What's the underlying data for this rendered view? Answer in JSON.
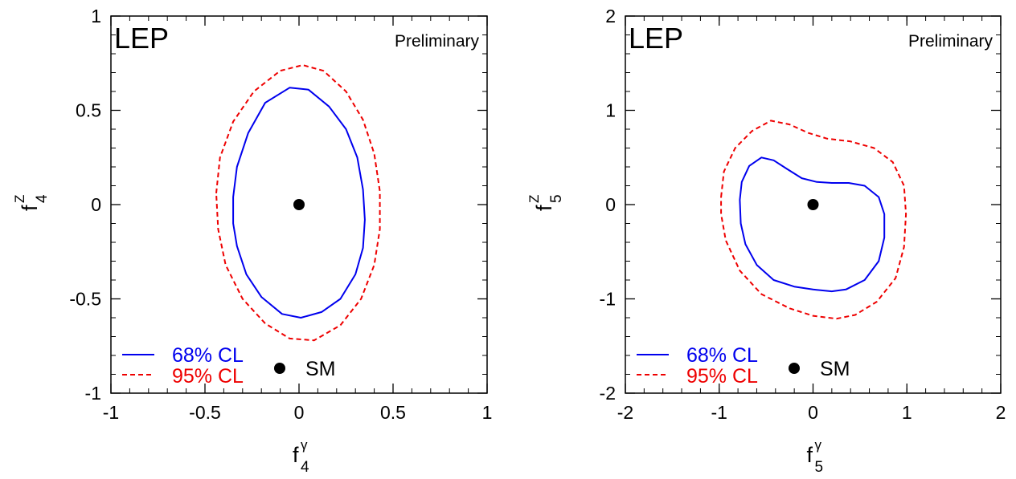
{
  "chart_data": [
    {
      "type": "contour",
      "label": "LEP",
      "annotation": "Preliminary",
      "xlabel": {
        "base": "f",
        "sup": "γ",
        "sub": "4"
      },
      "ylabel": {
        "base": "f",
        "sup": "Z",
        "sub": "4"
      },
      "xlim": [
        -1,
        1
      ],
      "ylim": [
        -1,
        1
      ],
      "xticks": [
        -1,
        -0.5,
        0,
        0.5,
        1
      ],
      "yticks": [
        -1,
        -0.5,
        0,
        0.5,
        1
      ],
      "xtick_labels": [
        "-1",
        "-0.5",
        "0",
        "0.5",
        "1"
      ],
      "ytick_labels": [
        "-1",
        "-0.5",
        "0",
        "0.5",
        "1"
      ],
      "minor_step": 0.1,
      "sm_point": {
        "x": 0,
        "y": 0
      },
      "legend": {
        "cl68": "68% CL",
        "cl95": "95% CL",
        "sm": "SM",
        "placement": "bottom-left"
      },
      "colors": {
        "cl68": "#0000ee",
        "cl95": "#ee0000",
        "sm": "#000000"
      },
      "contours": {
        "cl68": [
          [
            -0.35,
            0.04
          ],
          [
            -0.33,
            0.2
          ],
          [
            -0.27,
            0.38
          ],
          [
            -0.18,
            0.54
          ],
          [
            -0.05,
            0.62
          ],
          [
            0.05,
            0.61
          ],
          [
            0.16,
            0.52
          ],
          [
            0.25,
            0.4
          ],
          [
            0.31,
            0.25
          ],
          [
            0.34,
            0.08
          ],
          [
            0.35,
            -0.08
          ],
          [
            0.34,
            -0.23
          ],
          [
            0.3,
            -0.37
          ],
          [
            0.22,
            -0.5
          ],
          [
            0.12,
            -0.57
          ],
          [
            0.01,
            -0.6
          ],
          [
            -0.09,
            -0.58
          ],
          [
            -0.2,
            -0.49
          ],
          [
            -0.28,
            -0.37
          ],
          [
            -0.33,
            -0.22
          ],
          [
            -0.35,
            -0.1
          ],
          [
            -0.35,
            0.04
          ]
        ],
        "cl95": [
          [
            -0.44,
            0.06
          ],
          [
            -0.42,
            0.25
          ],
          [
            -0.35,
            0.44
          ],
          [
            -0.24,
            0.6
          ],
          [
            -0.1,
            0.71
          ],
          [
            0.02,
            0.74
          ],
          [
            0.13,
            0.71
          ],
          [
            0.25,
            0.6
          ],
          [
            0.34,
            0.45
          ],
          [
            0.4,
            0.27
          ],
          [
            0.43,
            0.07
          ],
          [
            0.43,
            -0.13
          ],
          [
            0.4,
            -0.32
          ],
          [
            0.33,
            -0.5
          ],
          [
            0.22,
            -0.64
          ],
          [
            0.08,
            -0.72
          ],
          [
            -0.05,
            -0.71
          ],
          [
            -0.18,
            -0.63
          ],
          [
            -0.3,
            -0.5
          ],
          [
            -0.39,
            -0.32
          ],
          [
            -0.43,
            -0.13
          ],
          [
            -0.44,
            0.06
          ]
        ]
      }
    },
    {
      "type": "contour",
      "label": "LEP",
      "annotation": "Preliminary",
      "xlabel": {
        "base": "f",
        "sup": "γ",
        "sub": "5"
      },
      "ylabel": {
        "base": "f",
        "sup": "Z",
        "sub": "5"
      },
      "xlim": [
        -2,
        2
      ],
      "ylim": [
        -2,
        2
      ],
      "xticks": [
        -2,
        -1,
        0,
        1,
        2
      ],
      "yticks": [
        -2,
        -1,
        0,
        1,
        2
      ],
      "xtick_labels": [
        "-2",
        "-1",
        "0",
        "1",
        "2"
      ],
      "ytick_labels": [
        "-2",
        "-1",
        "0",
        "1",
        "2"
      ],
      "minor_step": 0.2,
      "sm_point": {
        "x": 0,
        "y": 0
      },
      "legend": {
        "cl68": "68% CL",
        "cl95": "95% CL",
        "sm": "SM",
        "placement": "bottom-left"
      },
      "colors": {
        "cl68": "#0000ee",
        "cl95": "#ee0000",
        "sm": "#000000"
      },
      "contours": {
        "cl68": [
          [
            -0.78,
            0.05
          ],
          [
            -0.76,
            0.24
          ],
          [
            -0.68,
            0.41
          ],
          [
            -0.55,
            0.5
          ],
          [
            -0.42,
            0.47
          ],
          [
            -0.28,
            0.38
          ],
          [
            -0.12,
            0.28
          ],
          [
            0.04,
            0.24
          ],
          [
            0.2,
            0.23
          ],
          [
            0.38,
            0.23
          ],
          [
            0.55,
            0.2
          ],
          [
            0.7,
            0.08
          ],
          [
            0.76,
            -0.1
          ],
          [
            0.76,
            -0.35
          ],
          [
            0.7,
            -0.6
          ],
          [
            0.55,
            -0.8
          ],
          [
            0.35,
            -0.9
          ],
          [
            0.2,
            -0.92
          ],
          [
            0.0,
            -0.9
          ],
          [
            -0.2,
            -0.87
          ],
          [
            -0.42,
            -0.8
          ],
          [
            -0.6,
            -0.64
          ],
          [
            -0.72,
            -0.42
          ],
          [
            -0.77,
            -0.2
          ],
          [
            -0.78,
            0.05
          ]
        ],
        "cl95": [
          [
            -0.98,
            0.08
          ],
          [
            -0.95,
            0.35
          ],
          [
            -0.83,
            0.6
          ],
          [
            -0.65,
            0.78
          ],
          [
            -0.45,
            0.89
          ],
          [
            -0.25,
            0.85
          ],
          [
            -0.05,
            0.76
          ],
          [
            0.15,
            0.7
          ],
          [
            0.4,
            0.67
          ],
          [
            0.65,
            0.6
          ],
          [
            0.85,
            0.45
          ],
          [
            0.97,
            0.2
          ],
          [
            0.99,
            -0.1
          ],
          [
            0.97,
            -0.45
          ],
          [
            0.88,
            -0.78
          ],
          [
            0.68,
            -1.03
          ],
          [
            0.45,
            -1.17
          ],
          [
            0.25,
            -1.21
          ],
          [
            0.0,
            -1.18
          ],
          [
            -0.25,
            -1.1
          ],
          [
            -0.55,
            -0.95
          ],
          [
            -0.78,
            -0.7
          ],
          [
            -0.93,
            -0.38
          ],
          [
            -0.98,
            -0.1
          ],
          [
            -0.98,
            0.08
          ]
        ]
      }
    }
  ]
}
